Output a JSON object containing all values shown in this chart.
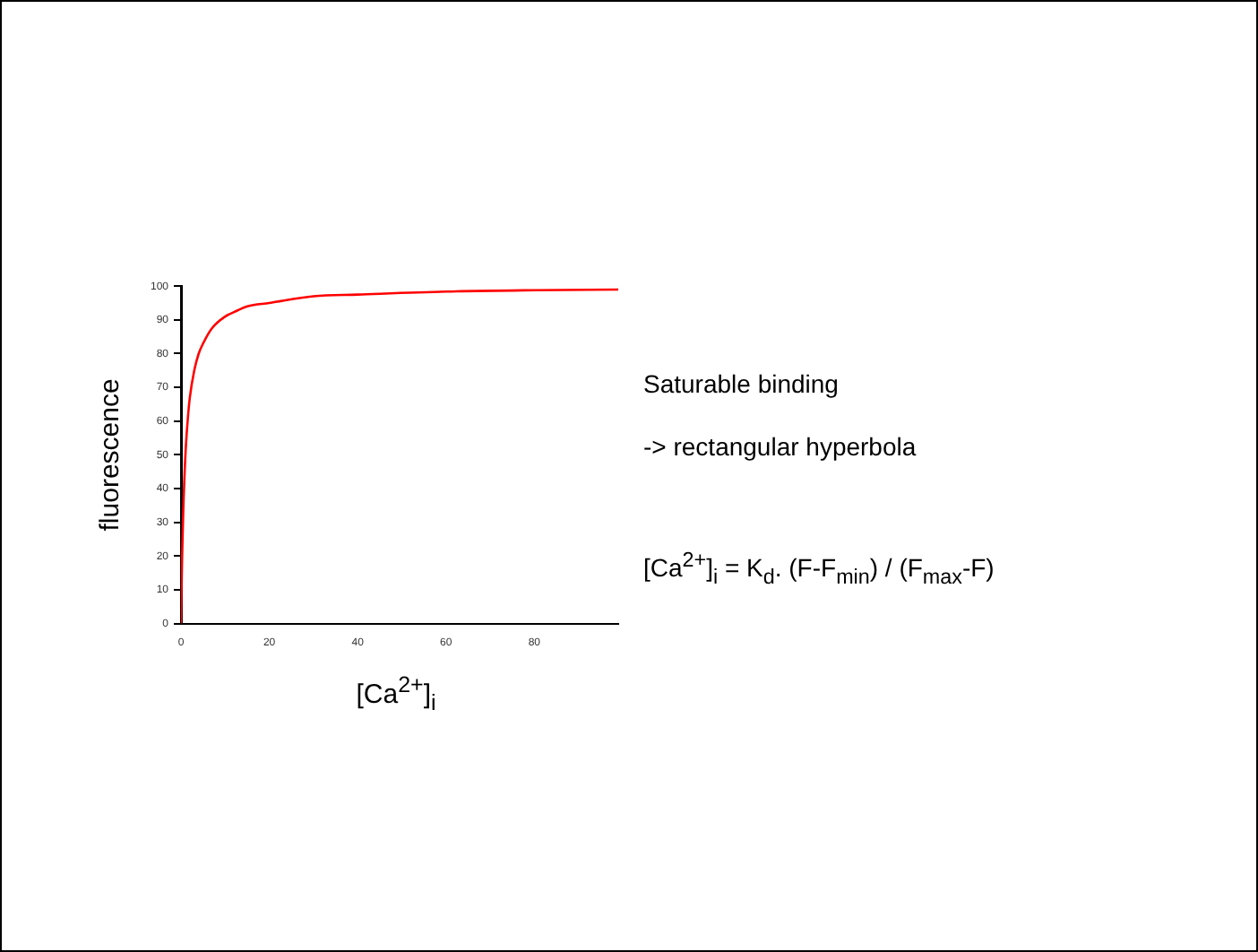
{
  "chart_data": {
    "type": "line",
    "xlabel": "[Ca$^{2+}$]$_{i}$",
    "ylabel": "fluorescence",
    "x": [
      0,
      0.25,
      0.5,
      1,
      1.5,
      2,
      3,
      4,
      5,
      7,
      10,
      12,
      15,
      20,
      30,
      40,
      60,
      80,
      99
    ],
    "series": [
      {
        "color": "#ff0000",
        "values": [
          0,
          20,
          33,
          50,
          60,
          67,
          75,
          80,
          83,
          87.5,
          91,
          92.3,
          94,
          95,
          97,
          97.5,
          98.4,
          98.8,
          99
        ]
      }
    ],
    "xlim": [
      0,
      99
    ],
    "xticks": [
      0,
      20,
      40,
      60,
      80
    ],
    "ylim": [
      0,
      100
    ],
    "yticks": [
      0,
      10,
      20,
      30,
      40,
      50,
      60,
      70,
      80,
      90,
      100
    ],
    "grid": false,
    "legend": false,
    "marker": "none",
    "line_style": "solid",
    "annotations": [
      "Saturable binding",
      "-> rectangular hyperbola",
      "[Ca$^{2+}$]$_{i}$ = K$_{d}$. (F-F$_{min}$) / (F$_{max}$-F)"
    ]
  }
}
